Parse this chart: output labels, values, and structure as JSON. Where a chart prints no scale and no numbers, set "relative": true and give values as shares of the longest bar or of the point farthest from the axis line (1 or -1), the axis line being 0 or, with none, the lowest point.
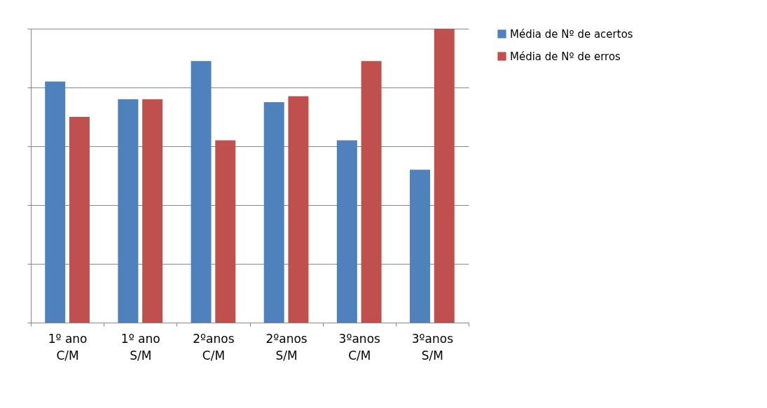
{
  "chart_data": {
    "type": "bar",
    "relative": true,
    "categories": [
      "1º ano\nC/M",
      "1º ano\nS/M",
      "2ºanos\nC/M",
      "2ºanos\nS/M",
      "3ºanos\nC/M",
      "3ºanos\nS/M"
    ],
    "series": [
      {
        "name": "Média de Nº de acertos",
        "color": "#4f81bd",
        "values": [
          0.82,
          0.76,
          0.89,
          0.75,
          0.62,
          0.52
        ]
      },
      {
        "name": "Média de Nº de erros",
        "color": "#c0504d",
        "values": [
          0.7,
          0.76,
          0.62,
          0.77,
          0.89,
          1
        ]
      }
    ],
    "grid": "y",
    "legend": "right"
  }
}
